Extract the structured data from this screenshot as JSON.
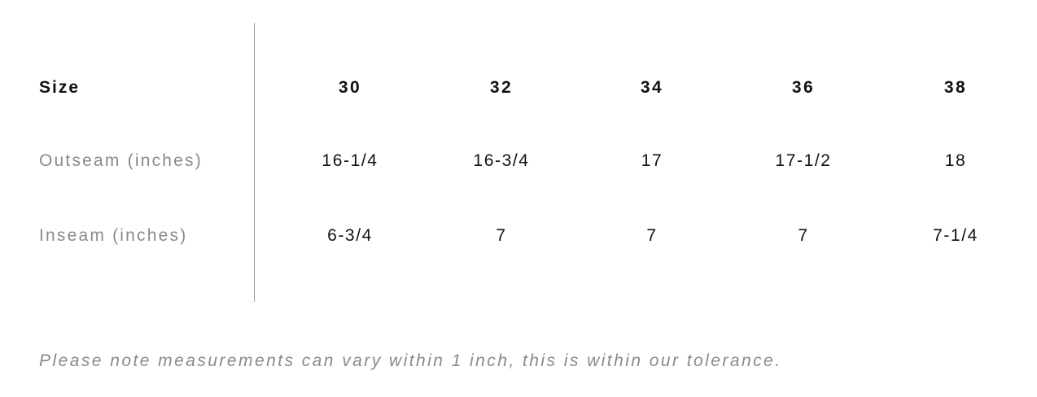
{
  "table": {
    "header": {
      "label": "Size",
      "values": [
        "30",
        "32",
        "34",
        "36",
        "38"
      ]
    },
    "rows": [
      {
        "label": "Outseam (inches)",
        "values": [
          "16-1/4",
          "16-3/4",
          "17",
          "17-1/2",
          "18"
        ]
      },
      {
        "label": "Inseam (inches)",
        "values": [
          "6-3/4",
          "7",
          "7",
          "7",
          "7-1/4"
        ]
      }
    ]
  },
  "note": "Please note measurements can vary within 1 inch, this is within our tolerance."
}
